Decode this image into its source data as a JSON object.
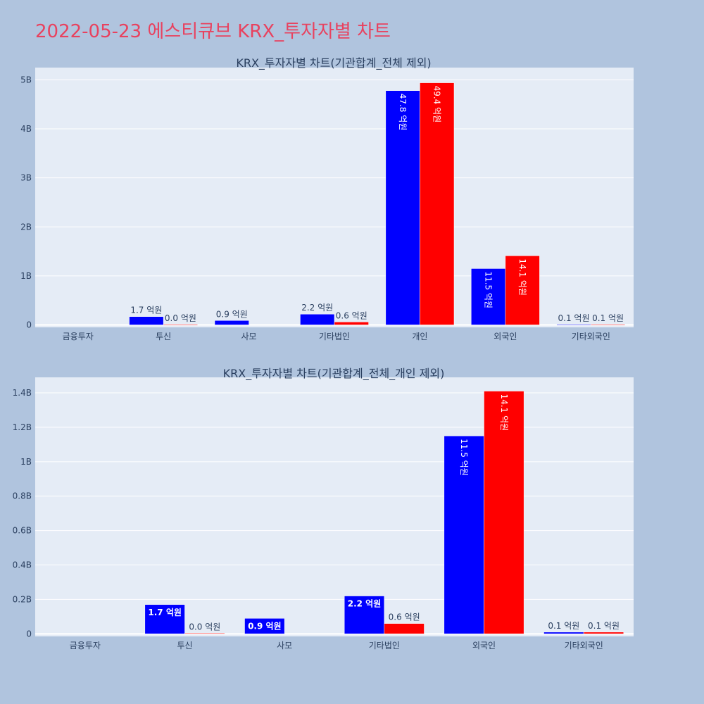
{
  "page_title": "2022-05-23 에스티큐브 KRX_투자자별 차트",
  "colors": {
    "buy": "#0000ff",
    "sell": "#ff0000",
    "plot_bg": "#e5ecf6",
    "paper_bg": "#b0c4de",
    "title": "#e8425f"
  },
  "chart_data": [
    {
      "type": "bar",
      "title": "KRX_투자자별 차트(기관합계_전체 제외)",
      "categories": [
        "금융투자",
        "투신",
        "사모",
        "기타법인",
        "개인",
        "외국인",
        "기타외국인"
      ],
      "series": [
        {
          "values": [
            0,
            170000000,
            90000000,
            220000000,
            4780000000,
            1150000000,
            10000000
          ],
          "labels": [
            "",
            "1.7 억원",
            "0.9 억원",
            "2.2 억원",
            "47.8 억원",
            "11.5 억원",
            "0.1 억원"
          ]
        },
        {
          "values": [
            0,
            4000000,
            0,
            60000000,
            4940000000,
            1410000000,
            10000000
          ],
          "labels": [
            "",
            "0.0 억원",
            "",
            "0.6 억원",
            "49.4 억원",
            "14.1 억원",
            "0.1 억원"
          ]
        }
      ],
      "yticks": [
        "0",
        "1B",
        "2B",
        "3B",
        "4B",
        "5B"
      ],
      "ytick_values": [
        0,
        1000000000,
        2000000000,
        3000000000,
        4000000000,
        5000000000
      ],
      "ylim": [
        -50000000,
        5250000000
      ],
      "grid": true,
      "legend": "none"
    },
    {
      "type": "bar",
      "title": "KRX_투자자별 차트(기관합계_전체_개인 제외)",
      "categories": [
        "금융투자",
        "투신",
        "사모",
        "기타법인",
        "외국인",
        "기타외국인"
      ],
      "series": [
        {
          "values": [
            0,
            170000000,
            90000000,
            220000000,
            1150000000,
            10000000
          ],
          "labels": [
            "",
            "1.7 억원",
            "0.9 억원",
            "2.2 억원",
            "11.5 억원",
            "0.1 억원"
          ]
        },
        {
          "values": [
            0,
            4000000,
            0,
            60000000,
            1410000000,
            10000000
          ],
          "labels": [
            "",
            "0.0 억원",
            "",
            "0.6 억원",
            "14.1 억원",
            "0.1 억원"
          ]
        }
      ],
      "yticks": [
        "0",
        "0.2B",
        "0.4B",
        "0.6B",
        "0.8B",
        "1B",
        "1.2B",
        "1.4B"
      ],
      "ytick_values": [
        0,
        200000000,
        400000000,
        600000000,
        800000000,
        1000000000,
        1200000000,
        1400000000
      ],
      "ylim": [
        -15000000,
        1490000000
      ],
      "grid": true,
      "legend": "none"
    }
  ]
}
